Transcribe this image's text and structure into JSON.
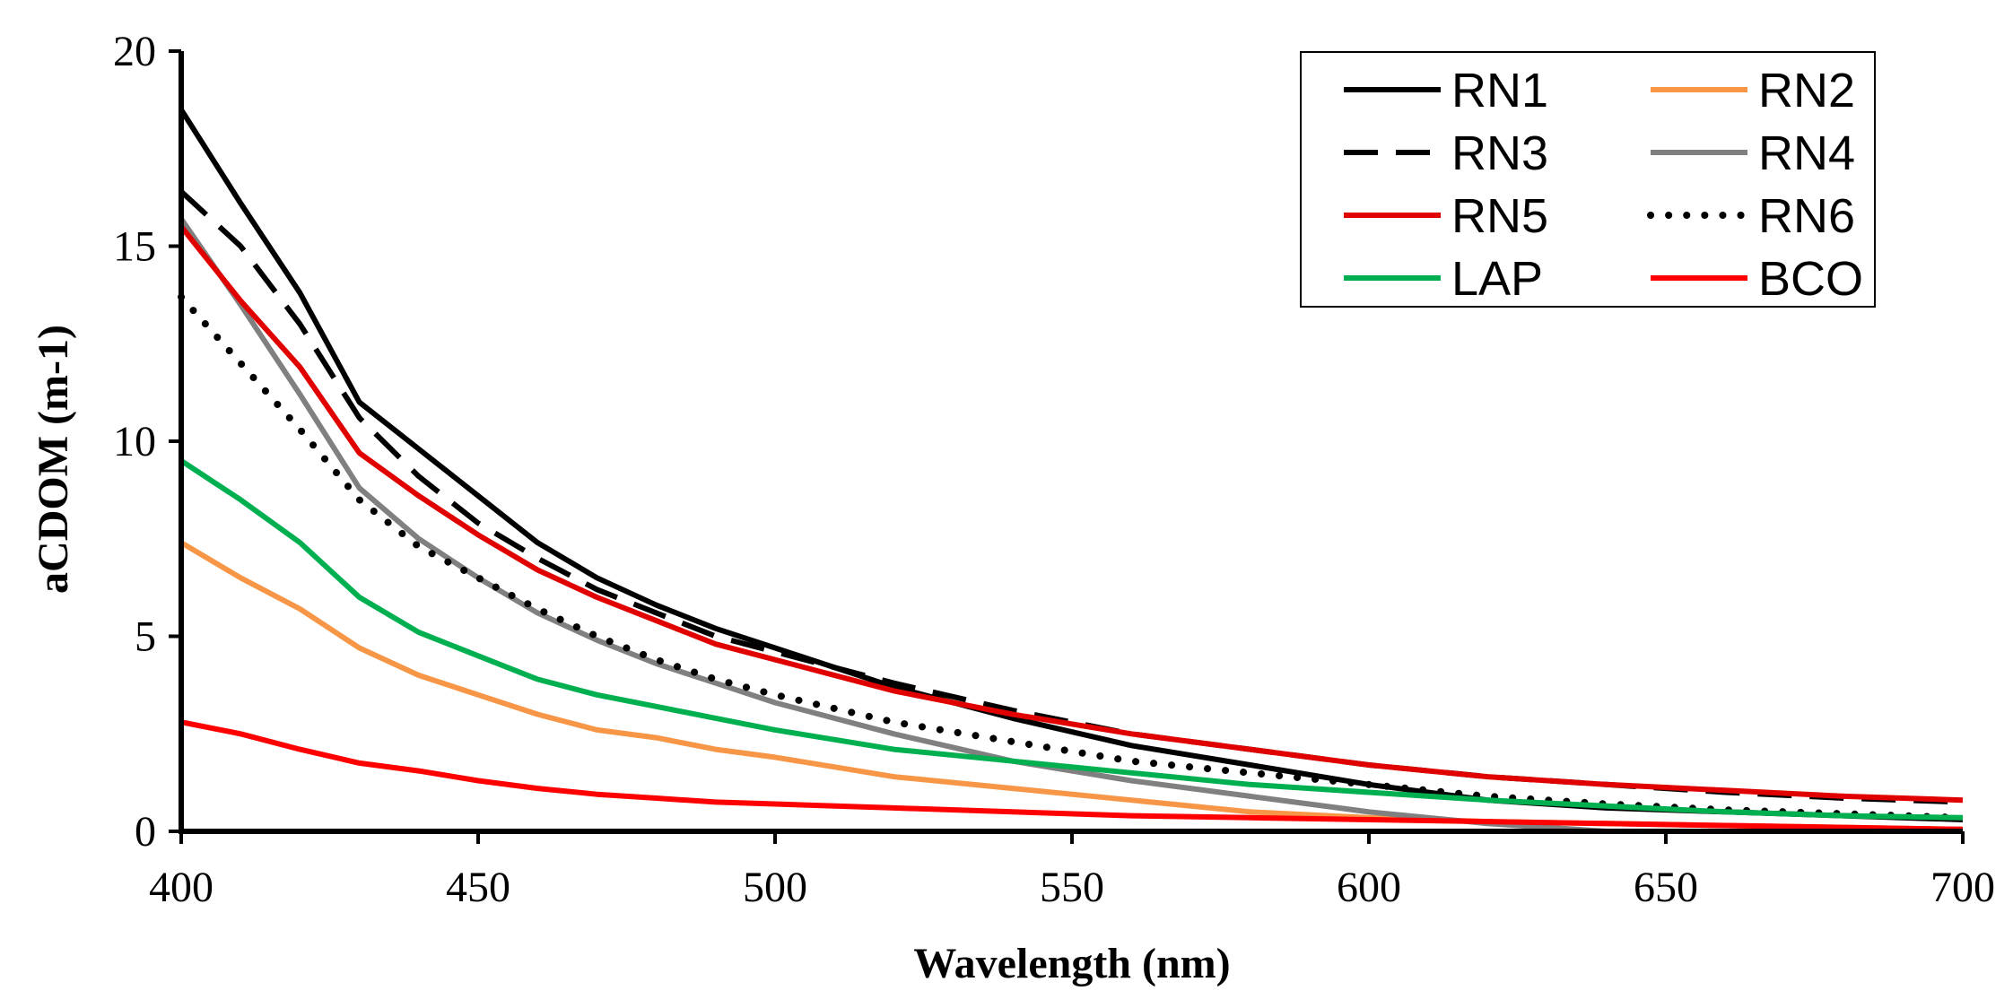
{
  "chart_data": {
    "type": "line",
    "title": "",
    "xlabel": "Wavelength (nm)",
    "ylabel": "aCDOM (m-1)",
    "xlim": [
      400,
      700
    ],
    "ylim": [
      0,
      20
    ],
    "x_ticks": [
      400,
      450,
      500,
      550,
      600,
      650,
      700
    ],
    "y_ticks": [
      0,
      5,
      10,
      15,
      20
    ],
    "grid": false,
    "legend": {
      "placement": "top-right",
      "columns": 2
    },
    "x": [
      400,
      410,
      420,
      430,
      440,
      450,
      460,
      470,
      480,
      490,
      500,
      520,
      540,
      560,
      580,
      600,
      620,
      640,
      660,
      680,
      700
    ],
    "series": [
      {
        "name": "RN1",
        "color": "#000000",
        "dash": "solid",
        "values": [
          18.5,
          16.1,
          13.8,
          11.0,
          9.8,
          8.6,
          7.4,
          6.5,
          5.8,
          5.2,
          4.7,
          3.7,
          2.9,
          2.2,
          1.7,
          1.2,
          0.8,
          0.6,
          0.5,
          0.4,
          0.3
        ]
      },
      {
        "name": "RN2",
        "color": "#f79646",
        "dash": "solid",
        "values": [
          7.4,
          6.5,
          5.7,
          4.7,
          4.0,
          3.5,
          3.0,
          2.6,
          2.4,
          2.1,
          1.9,
          1.4,
          1.1,
          0.8,
          0.5,
          0.35,
          0.25,
          0.2,
          0.15,
          0.1,
          0.05
        ]
      },
      {
        "name": "RN3",
        "color": "#000000",
        "dash": "dashed",
        "values": [
          16.4,
          15.0,
          13.0,
          10.6,
          9.1,
          7.9,
          7.0,
          6.2,
          5.6,
          5.0,
          4.6,
          3.8,
          3.1,
          2.5,
          2.1,
          1.7,
          1.4,
          1.2,
          1.0,
          0.85,
          0.75
        ]
      },
      {
        "name": "RN4",
        "color": "#808080",
        "dash": "solid",
        "values": [
          15.7,
          13.5,
          11.2,
          8.8,
          7.5,
          6.5,
          5.6,
          4.9,
          4.3,
          3.8,
          3.3,
          2.5,
          1.8,
          1.3,
          0.9,
          0.5,
          0.2,
          0.0,
          0.0,
          0.0,
          0.0
        ]
      },
      {
        "name": "RN5",
        "color": "#e00000",
        "dash": "solid",
        "values": [
          15.5,
          13.6,
          11.9,
          9.7,
          8.6,
          7.6,
          6.7,
          6.0,
          5.4,
          4.8,
          4.4,
          3.6,
          3.0,
          2.5,
          2.1,
          1.7,
          1.4,
          1.2,
          1.05,
          0.9,
          0.8
        ]
      },
      {
        "name": "RN6",
        "color": "#000000",
        "dash": "dotted",
        "values": [
          13.7,
          12.0,
          10.3,
          8.5,
          7.3,
          6.5,
          5.7,
          5.0,
          4.4,
          3.9,
          3.5,
          2.8,
          2.3,
          1.8,
          1.5,
          1.2,
          0.9,
          0.7,
          0.55,
          0.45,
          0.35
        ]
      },
      {
        "name": "LAP",
        "color": "#00b050",
        "dash": "solid",
        "values": [
          9.5,
          8.5,
          7.4,
          6.0,
          5.1,
          4.5,
          3.9,
          3.5,
          3.2,
          2.9,
          2.6,
          2.1,
          1.8,
          1.5,
          1.2,
          1.0,
          0.8,
          0.65,
          0.5,
          0.4,
          0.35
        ]
      },
      {
        "name": "BCO",
        "color": "#ff0000",
        "dash": "solid",
        "values": [
          2.8,
          2.5,
          2.1,
          1.75,
          1.55,
          1.3,
          1.1,
          0.95,
          0.85,
          0.75,
          0.7,
          0.6,
          0.5,
          0.4,
          0.35,
          0.3,
          0.25,
          0.2,
          0.15,
          0.1,
          0.05
        ]
      }
    ]
  }
}
